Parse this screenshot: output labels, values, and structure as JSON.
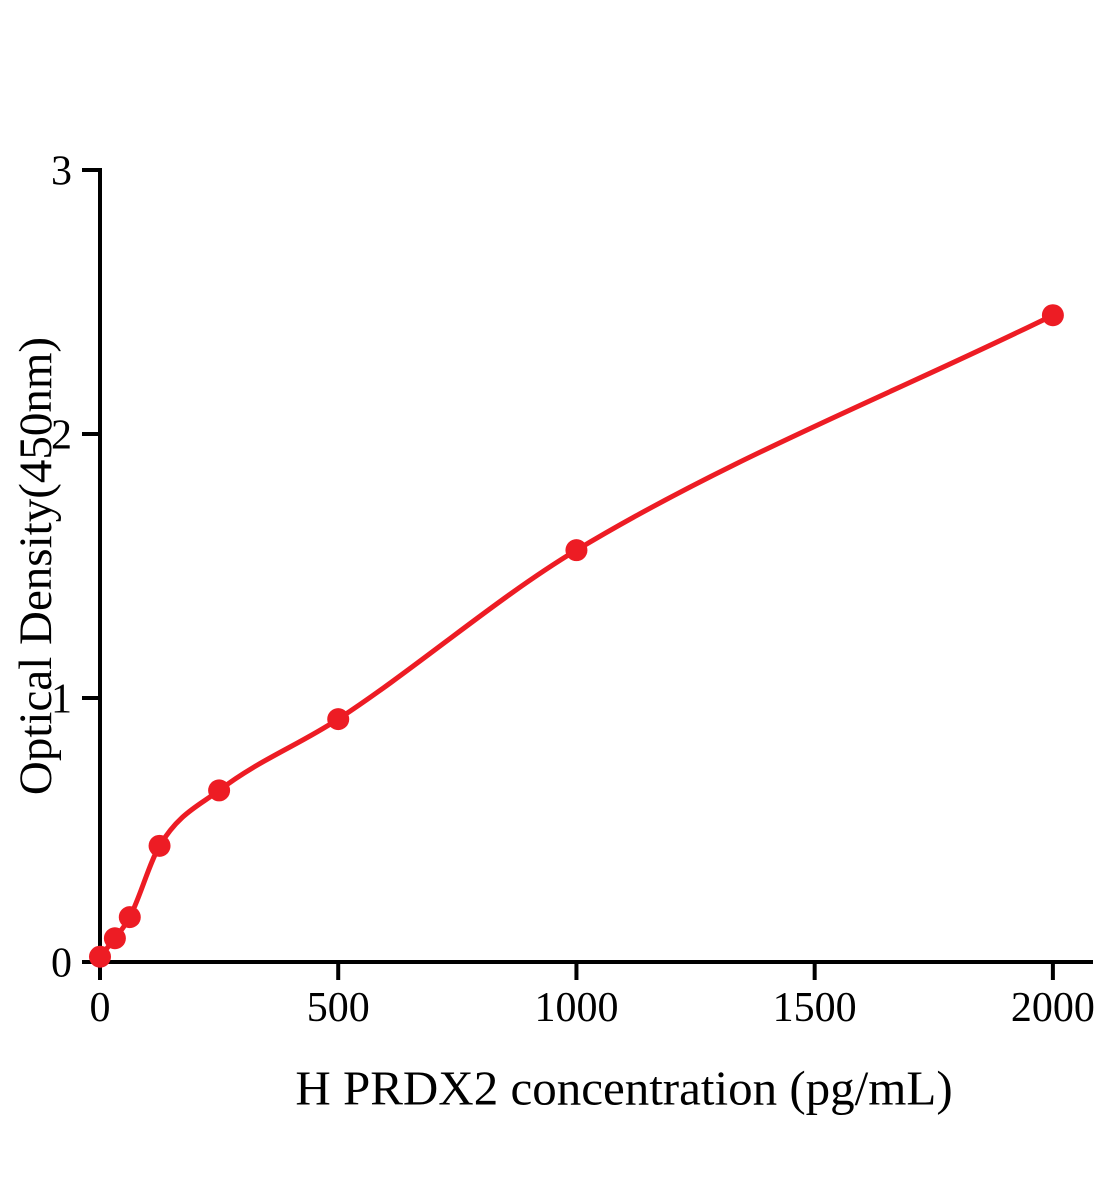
{
  "chart_data": {
    "type": "line",
    "title": "",
    "xlabel": "H PRDX2 concentration (pg/mL)",
    "ylabel": "Optical Density(450nm)",
    "x": [
      0,
      31.25,
      62.5,
      125,
      250,
      500,
      1000,
      2000
    ],
    "y": [
      0.02,
      0.09,
      0.17,
      0.44,
      0.65,
      0.92,
      1.56,
      2.45
    ],
    "xlim": [
      0,
      2080
    ],
    "ylim": [
      0,
      3
    ],
    "xticks": [
      0,
      500,
      1000,
      1500,
      2000
    ],
    "yticks": [
      0,
      1,
      2,
      3
    ],
    "grid": false,
    "legend": "none",
    "marker": "circle",
    "point_color": "#ed1c24",
    "line_color": "#ed1c24",
    "axis_color": "#000000",
    "tick_label_color": "#000000"
  }
}
